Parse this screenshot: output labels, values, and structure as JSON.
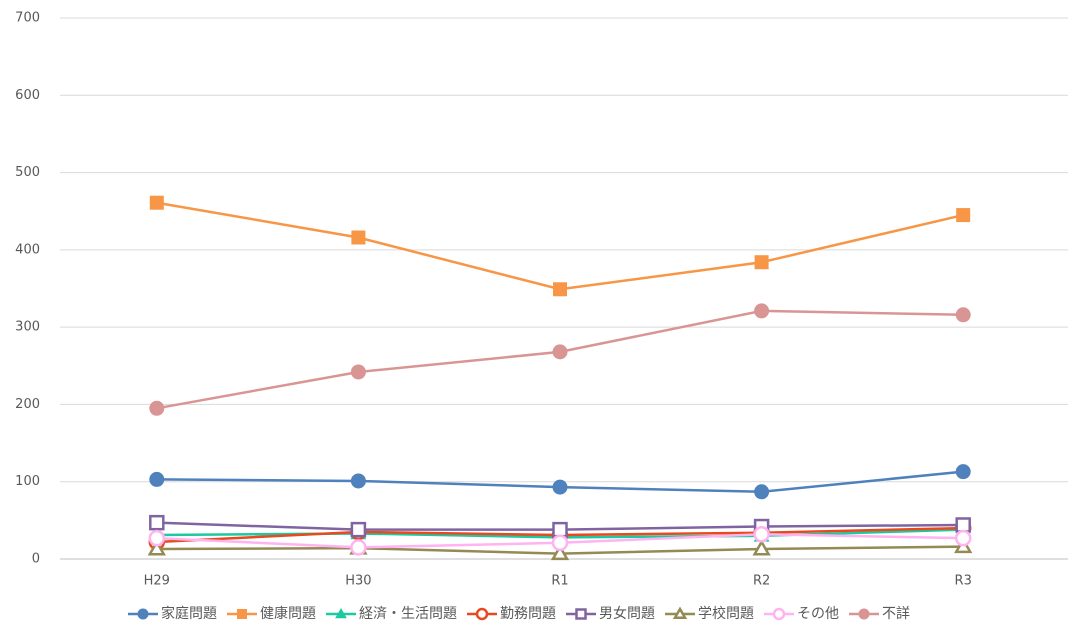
{
  "chart_data": {
    "type": "line",
    "categories": [
      "H29",
      "H30",
      "R1",
      "R2",
      "R3"
    ],
    "ylim": [
      0,
      700
    ],
    "yticks": [
      0,
      100,
      200,
      300,
      400,
      500,
      600,
      700
    ],
    "grid": true,
    "legend": "bottom",
    "series": [
      {
        "name": "家庭問題",
        "color": "#4f81bd",
        "marker": "circle",
        "filled": true,
        "values": [
          103,
          101,
          93,
          87,
          113
        ]
      },
      {
        "name": "健康問題",
        "color": "#f79646",
        "marker": "square",
        "filled": true,
        "values": [
          461,
          416,
          349,
          384,
          445
        ]
      },
      {
        "name": "経済・生活問題",
        "color": "#1ec8a0",
        "marker": "triangle",
        "filled": true,
        "values": [
          31,
          33,
          28,
          30,
          38
        ]
      },
      {
        "name": "勤務問題",
        "color": "#e8491d",
        "marker": "circle",
        "filled": false,
        "values": [
          22,
          35,
          31,
          34,
          40
        ]
      },
      {
        "name": "男女問題",
        "color": "#8064a2",
        "marker": "square",
        "filled": false,
        "values": [
          47,
          38,
          38,
          42,
          44
        ]
      },
      {
        "name": "学校問題",
        "color": "#948a54",
        "marker": "triangle",
        "filled": false,
        "values": [
          13,
          14,
          7,
          13,
          16
        ]
      },
      {
        "name": "その他",
        "color": "#ffb3f0",
        "marker": "circle",
        "filled": false,
        "values": [
          27,
          15,
          21,
          32,
          27
        ]
      },
      {
        "name": "不詳",
        "color": "#d99594",
        "marker": "circle",
        "filled": true,
        "values": [
          195,
          242,
          268,
          321,
          316
        ]
      }
    ]
  }
}
